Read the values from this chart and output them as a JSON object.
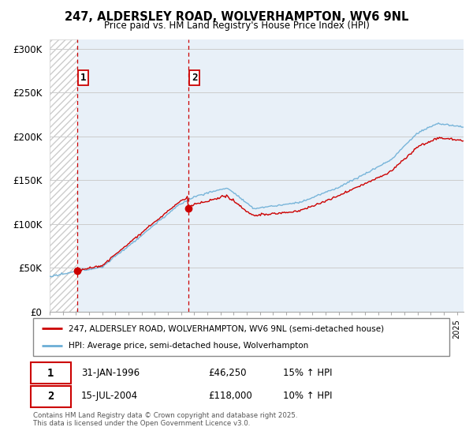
{
  "title_line1": "247, ALDERSLEY ROAD, WOLVERHAMPTON, WV6 9NL",
  "title_line2": "Price paid vs. HM Land Registry's House Price Index (HPI)",
  "ylabel_ticks": [
    "£0",
    "£50K",
    "£100K",
    "£150K",
    "£200K",
    "£250K",
    "£300K"
  ],
  "ytick_values": [
    0,
    50000,
    100000,
    150000,
    200000,
    250000,
    300000
  ],
  "ylim": [
    0,
    310000
  ],
  "xlim_start": 1994.0,
  "xlim_end": 2025.5,
  "hpi_color": "#6baed6",
  "price_color": "#cc0000",
  "purchase1_x": 1996.08,
  "purchase1_y": 46250,
  "purchase2_x": 2004.54,
  "purchase2_y": 118000,
  "legend_line1": "247, ALDERSLEY ROAD, WOLVERHAMPTON, WV6 9NL (semi-detached house)",
  "legend_line2": "HPI: Average price, semi-detached house, Wolverhampton",
  "table_row1_num": "1",
  "table_row1_date": "31-JAN-1996",
  "table_row1_price": "£46,250",
  "table_row1_hpi": "15% ↑ HPI",
  "table_row2_num": "2",
  "table_row2_date": "15-JUL-2004",
  "table_row2_price": "£118,000",
  "table_row2_hpi": "10% ↑ HPI",
  "footnote": "Contains HM Land Registry data © Crown copyright and database right 2025.\nThis data is licensed under the Open Government Licence v3.0.",
  "background_color": "#e8f0f8"
}
